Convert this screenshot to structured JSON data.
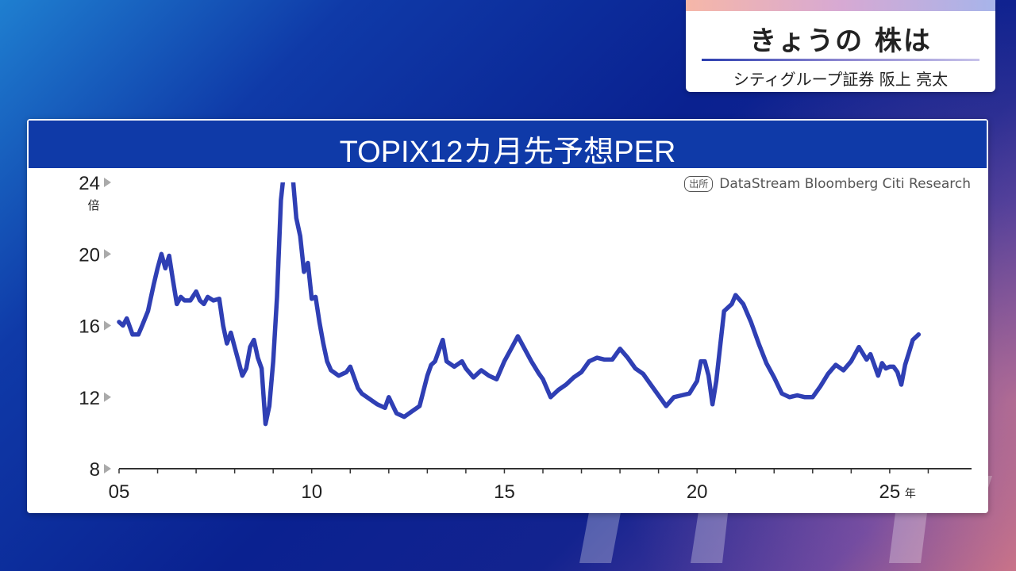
{
  "header": {
    "title": "きょうの 株は",
    "subtitle": "シティグループ証券 阪上 亮太"
  },
  "colors": {
    "line": "#2f3fb4",
    "header_bg": "#0f3aa8",
    "axis": "#333333"
  },
  "chart_data": {
    "type": "line",
    "title": "TOPIX12カ月先予想PER",
    "source_tag": "出所",
    "source": "DataStream Bloomberg Citi Research",
    "y_unit": "倍",
    "x_unit": "年",
    "ylim": [
      8,
      24
    ],
    "yticks": [
      "24",
      "20",
      "16",
      "12",
      "8"
    ],
    "xlim": [
      2005,
      2026.3
    ],
    "xticks": [
      {
        "value": 2005,
        "label": "05"
      },
      {
        "value": 2010,
        "label": "10"
      },
      {
        "value": 2015,
        "label": "15"
      },
      {
        "value": 2020,
        "label": "20"
      },
      {
        "value": 2025,
        "label": "25"
      }
    ],
    "series": [
      {
        "x": [
          2005.0,
          2005.1,
          2005.2,
          2005.35,
          2005.5,
          2005.6,
          2005.75,
          2005.9,
          2006.0,
          2006.1,
          2006.2,
          2006.3,
          2006.4,
          2006.5,
          2006.6,
          2006.7,
          2006.85,
          2007.0,
          2007.1,
          2007.2,
          2007.3,
          2007.45,
          2007.6,
          2007.7,
          2007.8,
          2007.9,
          2008.0,
          2008.1,
          2008.2,
          2008.3,
          2008.4,
          2008.5,
          2008.6,
          2008.7,
          2008.8,
          2008.9,
          2009.0,
          2009.1,
          2009.2,
          2009.3,
          2009.4,
          2009.5,
          2009.6,
          2009.7,
          2009.8,
          2009.9,
          2010.0,
          2010.1,
          2010.2,
          2010.3,
          2010.4,
          2010.5,
          2010.7,
          2010.9,
          2011.0,
          2011.2,
          2011.3,
          2011.5,
          2011.7,
          2011.9,
          2012.0,
          2012.2,
          2012.4,
          2012.6,
          2012.8,
          2013.0,
          2013.1,
          2013.2,
          2013.3,
          2013.4,
          2013.5,
          2013.7,
          2013.9,
          2014.0,
          2014.2,
          2014.4,
          2014.6,
          2014.8,
          2015.0,
          2015.2,
          2015.35,
          2015.5,
          2015.7,
          2015.9,
          2016.0,
          2016.2,
          2016.4,
          2016.6,
          2016.8,
          2017.0,
          2017.2,
          2017.4,
          2017.6,
          2017.8,
          2018.0,
          2018.2,
          2018.4,
          2018.6,
          2018.8,
          2019.0,
          2019.2,
          2019.4,
          2019.6,
          2019.8,
          2020.0,
          2020.1,
          2020.2,
          2020.3,
          2020.4,
          2020.5,
          2020.7,
          2020.9,
          2021.0,
          2021.2,
          2021.4,
          2021.6,
          2021.8,
          2022.0,
          2022.2,
          2022.4,
          2022.6,
          2022.8,
          2023.0,
          2023.2,
          2023.4,
          2023.6,
          2023.8,
          2024.0,
          2024.2,
          2024.4,
          2024.5,
          2024.6,
          2024.7,
          2024.8,
          2024.9,
          2025.0,
          2025.1,
          2025.2,
          2025.3,
          2025.4,
          2025.5,
          2025.6,
          2025.75
        ],
        "values": [
          16.2,
          16.0,
          16.4,
          15.5,
          15.5,
          16.0,
          16.8,
          18.3,
          19.2,
          20.0,
          19.2,
          19.9,
          18.5,
          17.2,
          17.6,
          17.4,
          17.4,
          17.9,
          17.4,
          17.2,
          17.6,
          17.4,
          17.5,
          16.0,
          15.0,
          15.6,
          14.8,
          14.0,
          13.2,
          13.6,
          14.8,
          15.2,
          14.2,
          13.6,
          10.5,
          11.5,
          14.0,
          17.6,
          23.0,
          25.0,
          25.0,
          24.5,
          22.0,
          21.0,
          19.0,
          19.5,
          17.5,
          17.6,
          16.2,
          15.0,
          14.0,
          13.5,
          13.2,
          13.4,
          13.7,
          12.5,
          12.2,
          11.9,
          11.6,
          11.4,
          12.0,
          11.1,
          10.9,
          11.2,
          11.5,
          13.2,
          13.8,
          14.0,
          14.6,
          15.2,
          14.0,
          13.7,
          14.0,
          13.6,
          13.1,
          13.5,
          13.2,
          13.0,
          14.0,
          14.8,
          15.4,
          14.8,
          14.0,
          13.3,
          13.0,
          12.0,
          12.4,
          12.7,
          13.1,
          13.4,
          14.0,
          14.2,
          14.1,
          14.1,
          14.7,
          14.2,
          13.6,
          13.3,
          12.7,
          12.1,
          11.5,
          12.0,
          12.1,
          12.2,
          12.9,
          14.0,
          14.0,
          13.2,
          11.6,
          12.9,
          16.8,
          17.2,
          17.7,
          17.2,
          16.2,
          15.0,
          13.9,
          13.1,
          12.2,
          12.0,
          12.1,
          12.0,
          12.0,
          12.6,
          13.3,
          13.8,
          13.5,
          14.0,
          14.8,
          14.1,
          14.4,
          13.8,
          13.2,
          13.9,
          13.6,
          13.7,
          13.7,
          13.4,
          12.7,
          13.8,
          14.5,
          15.2,
          15.5
        ]
      }
    ]
  }
}
